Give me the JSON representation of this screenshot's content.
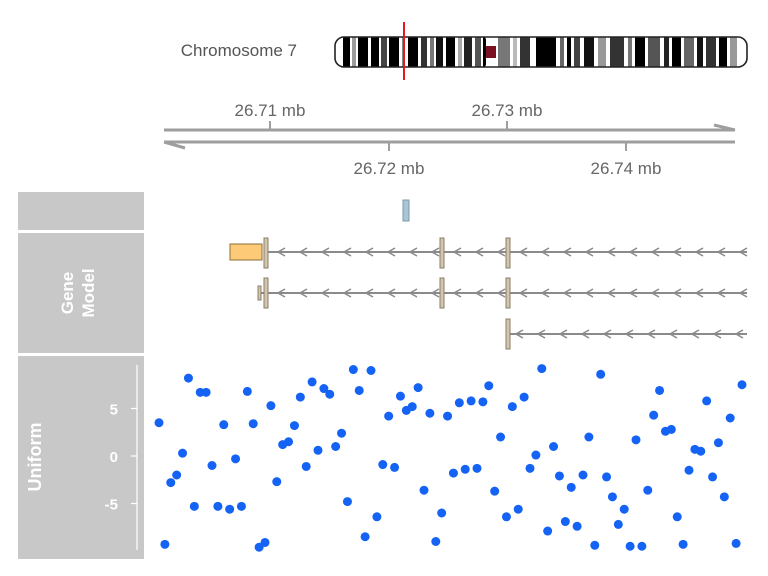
{
  "ideogram": {
    "label": "Chromosome 7",
    "marker_color": "#e41a1c"
  },
  "genome_axis": {
    "ticks_top": [
      "26.71 mb",
      "26.73 mb"
    ],
    "ticks_bottom": [
      "26.72 mb",
      "26.74 mb"
    ],
    "color": "#9e9e9e"
  },
  "tracks": {
    "gene_model": {
      "title": "Gene Model"
    },
    "uniform": {
      "title": "Uniform"
    },
    "panel_color": "#c8c8c8"
  },
  "chart_data": {
    "type": "scatter",
    "series": [
      {
        "color": "#1463f5",
        "x": [
          0,
          1,
          2,
          3,
          4,
          5,
          6,
          7,
          8,
          9,
          10,
          11,
          12,
          13,
          14,
          15,
          16,
          17,
          18,
          19,
          20,
          21,
          22,
          23,
          24,
          25,
          26,
          27,
          28,
          29,
          30,
          31,
          32,
          33,
          34,
          35,
          36,
          37,
          38,
          39,
          40,
          41,
          42,
          43,
          44,
          45,
          46,
          47,
          48,
          49,
          50,
          51,
          52,
          53,
          54,
          55,
          56,
          57,
          58,
          59,
          60,
          61,
          62,
          63,
          64,
          65,
          66,
          67,
          68,
          69,
          70,
          71,
          72,
          73,
          74,
          75,
          76,
          77,
          78,
          79,
          80,
          81,
          82,
          83,
          84,
          85,
          86,
          87,
          88,
          89,
          90,
          91,
          92,
          93,
          94,
          95,
          96,
          97,
          98,
          99
        ],
        "y": [
          3.5,
          -9.3,
          -2.8,
          -2,
          0.3,
          8.2,
          -5.3,
          6.7,
          6.7,
          -1,
          -5.3,
          3.3,
          -5.6,
          -0.3,
          -5.3,
          6.8,
          3.4,
          -9.6,
          -9.1,
          5.3,
          -2.7,
          1.2,
          1.5,
          3.2,
          6.2,
          -1.1,
          7.8,
          0.6,
          7.1,
          6.5,
          1,
          2.4,
          -4.8,
          9.1,
          6.9,
          -8.5,
          9,
          -6.4,
          -0.9,
          4.2,
          -1.2,
          6.3,
          4.8,
          5.2,
          7.2,
          -3.6,
          4.5,
          -9,
          -6,
          4.2,
          -1.8,
          5.6,
          -1.4,
          5.8,
          -1.3,
          5.7,
          7.4,
          -3.7,
          2,
          -6.4,
          5.2,
          -5.6,
          6.2,
          -1.3,
          0.1,
          9.2,
          -7.9,
          1,
          -2.1,
          -6.9,
          -3.3,
          -7.4,
          -2,
          2,
          -9.4,
          8.6,
          -2.2,
          -4.3,
          -7.2,
          -5.6,
          -9.5,
          1.7,
          -9.5,
          -3.6,
          4.3,
          6.9,
          2.6,
          2.8,
          -6.4,
          -9.3,
          -1.5,
          0.7,
          0.5,
          5.8,
          -2.2,
          1.4,
          -4.3,
          4,
          -9.2,
          7.5
        ]
      }
    ],
    "xlim": [
      0,
      100
    ],
    "ylim": [
      -10,
      10
    ],
    "yticks": [
      -5,
      0,
      5
    ],
    "ytick_labels": [
      "-5",
      "0",
      "5"
    ]
  }
}
